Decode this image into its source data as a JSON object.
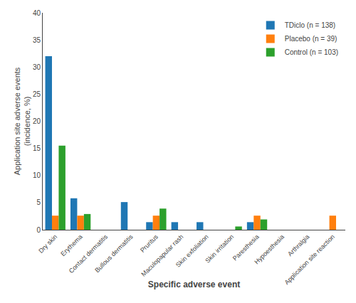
{
  "chart_data": {
    "type": "bar",
    "categories": [
      "Dry skin",
      "Erythema",
      "Contact dermatitis",
      "Bullous dermatitis",
      "Pruritus",
      "Maculopapular rash",
      "Skin exfoliation",
      "Skin irritation",
      "Paresthesia",
      "Hypoesthesia",
      "Arthralgia",
      "Application site reaction"
    ],
    "series": [
      {
        "name": "TDiclo (n = 138)",
        "values": [
          32,
          5.8,
          0,
          5.1,
          1.4,
          1.4,
          1.4,
          0,
          1.4,
          0,
          0,
          0
        ]
      },
      {
        "name": "Placebo (n = 39)",
        "values": [
          2.6,
          2.6,
          0,
          0,
          2.6,
          0,
          0,
          0,
          2.6,
          0,
          0,
          2.6
        ]
      },
      {
        "name": "Control (n = 103)",
        "values": [
          15.5,
          2.9,
          0,
          0,
          3.9,
          0,
          0,
          0.6,
          1.9,
          0,
          0,
          0
        ]
      }
    ],
    "xlabel": "Specific adverse event",
    "ylabel": "Application site adverse events\n(incidence, %)",
    "ylim": [
      0,
      40
    ],
    "yticks": [
      0,
      5,
      10,
      15,
      20,
      25,
      30,
      35,
      40
    ],
    "grid": false,
    "legend": "upper right"
  }
}
